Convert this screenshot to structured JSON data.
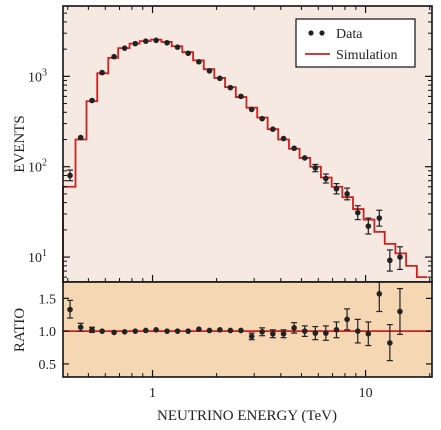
{
  "chart_data": [
    {
      "type": "scatter",
      "panel": "main",
      "ylabel": "EVENTS",
      "yscale": "log",
      "xscale": "log",
      "xlim": [
        0.38,
        20.5
      ],
      "ylim": [
        5.3,
        6000
      ],
      "background": "#f5e9e1",
      "y_ticks": [
        {
          "value": 10,
          "base": "10",
          "exp": "1"
        },
        {
          "value": 100,
          "base": "10",
          "exp": "2"
        },
        {
          "value": 1000,
          "base": "10",
          "exp": "3"
        }
      ],
      "legend": {
        "position": "top-right",
        "data_label": "Data",
        "sim_label": "Simulation"
      },
      "series": [
        {
          "name": "Data",
          "color": "#222222",
          "points": [
            {
              "x": 0.41,
              "y": 80,
              "lo": 70,
              "hi": 92
            },
            {
              "x": 0.46,
              "y": 210
            },
            {
              "x": 0.52,
              "y": 540
            },
            {
              "x": 0.58,
              "y": 1100
            },
            {
              "x": 0.66,
              "y": 1650
            },
            {
              "x": 0.74,
              "y": 2050
            },
            {
              "x": 0.83,
              "y": 2300
            },
            {
              "x": 0.93,
              "y": 2450
            },
            {
              "x": 1.04,
              "y": 2500
            },
            {
              "x": 1.17,
              "y": 2350
            },
            {
              "x": 1.31,
              "y": 2100
            },
            {
              "x": 1.47,
              "y": 1800
            },
            {
              "x": 1.65,
              "y": 1450
            },
            {
              "x": 1.85,
              "y": 1150
            },
            {
              "x": 2.07,
              "y": 950
            },
            {
              "x": 2.32,
              "y": 750
            },
            {
              "x": 2.6,
              "y": 600
            },
            {
              "x": 2.92,
              "y": 430
            },
            {
              "x": 3.27,
              "y": 340
            },
            {
              "x": 3.67,
              "y": 260
            },
            {
              "x": 4.12,
              "y": 205
            },
            {
              "x": 4.62,
              "y": 160
            },
            {
              "x": 5.18,
              "y": 125
            },
            {
              "x": 5.81,
              "y": 97,
              "lo": 88,
              "hi": 106
            },
            {
              "x": 6.51,
              "y": 74,
              "lo": 66,
              "hi": 83
            },
            {
              "x": 7.3,
              "y": 57,
              "lo": 50,
              "hi": 65
            },
            {
              "x": 8.19,
              "y": 50,
              "lo": 43,
              "hi": 58
            },
            {
              "x": 9.19,
              "y": 31,
              "lo": 26,
              "hi": 37
            },
            {
              "x": 10.3,
              "y": 22,
              "lo": 18,
              "hi": 27
            },
            {
              "x": 11.6,
              "y": 27,
              "lo": 22,
              "hi": 33
            },
            {
              "x": 13.0,
              "y": 9.2,
              "lo": 7.0,
              "hi": 12
            },
            {
              "x": 14.5,
              "y": 10,
              "lo": 7.3,
              "hi": 13
            }
          ]
        },
        {
          "name": "Simulation",
          "color": "#cc2222",
          "step_edges": [
            0.38,
            0.435,
            0.49,
            0.55,
            0.62,
            0.69,
            0.78,
            0.87,
            0.98,
            1.1,
            1.23,
            1.38,
            1.55,
            1.74,
            1.95,
            2.19,
            2.46,
            2.76,
            3.1,
            3.47,
            3.89,
            4.37,
            4.9,
            5.5,
            6.17,
            6.93,
            7.78,
            8.73,
            9.79,
            11.0,
            12.3,
            13.8,
            15.5,
            17.4,
            19.5
          ],
          "step_values": [
            60,
            200,
            530,
            1080,
            1600,
            2050,
            2300,
            2450,
            2550,
            2400,
            2150,
            1850,
            1500,
            1200,
            960,
            760,
            590,
            450,
            350,
            260,
            200,
            158,
            125,
            100,
            76,
            60,
            46,
            34,
            26,
            19,
            14,
            11,
            8,
            6
          ]
        }
      ]
    },
    {
      "type": "scatter",
      "panel": "ratio",
      "ylabel": "RATIO",
      "xlabel": "NEUTRINO ENERGY (TeV)",
      "xscale": "log",
      "xlim": [
        0.38,
        20.5
      ],
      "ylim": [
        0.3,
        1.75
      ],
      "background": "#f5d7b4",
      "y_ticks": [
        "0.5",
        "1.0",
        "1.5"
      ],
      "x_ticks": [
        {
          "value": 1,
          "label": "1"
        },
        {
          "value": 10,
          "label": "10"
        }
      ],
      "reference_line": 1.0,
      "reference_color": "#cc2222",
      "points": [
        {
          "x": 0.41,
          "y": 1.33,
          "lo": 1.2,
          "hi": 1.47
        },
        {
          "x": 0.46,
          "y": 1.06,
          "lo": 1.0,
          "hi": 1.12
        },
        {
          "x": 0.52,
          "y": 1.02,
          "lo": 0.98,
          "hi": 1.06
        },
        {
          "x": 0.58,
          "y": 1.0
        },
        {
          "x": 0.66,
          "y": 0.98
        },
        {
          "x": 0.74,
          "y": 0.99
        },
        {
          "x": 0.83,
          "y": 1.0
        },
        {
          "x": 0.93,
          "y": 1.01
        },
        {
          "x": 1.04,
          "y": 1.02
        },
        {
          "x": 1.17,
          "y": 1.0
        },
        {
          "x": 1.31,
          "y": 1.0
        },
        {
          "x": 1.47,
          "y": 1.0
        },
        {
          "x": 1.65,
          "y": 1.03
        },
        {
          "x": 1.85,
          "y": 1.01
        },
        {
          "x": 2.07,
          "y": 1.02
        },
        {
          "x": 2.32,
          "y": 1.01
        },
        {
          "x": 2.6,
          "y": 1.01
        },
        {
          "x": 2.92,
          "y": 0.92,
          "lo": 0.87,
          "hi": 0.97
        },
        {
          "x": 3.27,
          "y": 0.99,
          "lo": 0.93,
          "hi": 1.05
        },
        {
          "x": 3.67,
          "y": 0.96,
          "lo": 0.9,
          "hi": 1.02
        },
        {
          "x": 4.12,
          "y": 0.96,
          "lo": 0.9,
          "hi": 1.02
        },
        {
          "x": 4.62,
          "y": 1.05,
          "lo": 0.97,
          "hi": 1.13
        },
        {
          "x": 5.18,
          "y": 1.0,
          "lo": 0.92,
          "hi": 1.08
        },
        {
          "x": 5.81,
          "y": 0.97,
          "lo": 0.87,
          "hi": 1.07
        },
        {
          "x": 6.51,
          "y": 0.97,
          "lo": 0.86,
          "hi": 1.08
        },
        {
          "x": 7.3,
          "y": 1.02,
          "lo": 0.9,
          "hi": 1.14
        },
        {
          "x": 8.19,
          "y": 1.18,
          "lo": 1.02,
          "hi": 1.34
        },
        {
          "x": 9.19,
          "y": 1.0,
          "lo": 0.82,
          "hi": 1.18
        },
        {
          "x": 10.3,
          "y": 0.96,
          "lo": 0.78,
          "hi": 1.14
        },
        {
          "x": 11.6,
          "y": 1.57,
          "lo": 1.3,
          "hi": 1.75
        },
        {
          "x": 13.0,
          "y": 0.82,
          "lo": 0.55,
          "hi": 1.1
        },
        {
          "x": 14.5,
          "y": 1.3,
          "lo": 0.95,
          "hi": 1.65
        }
      ]
    }
  ]
}
